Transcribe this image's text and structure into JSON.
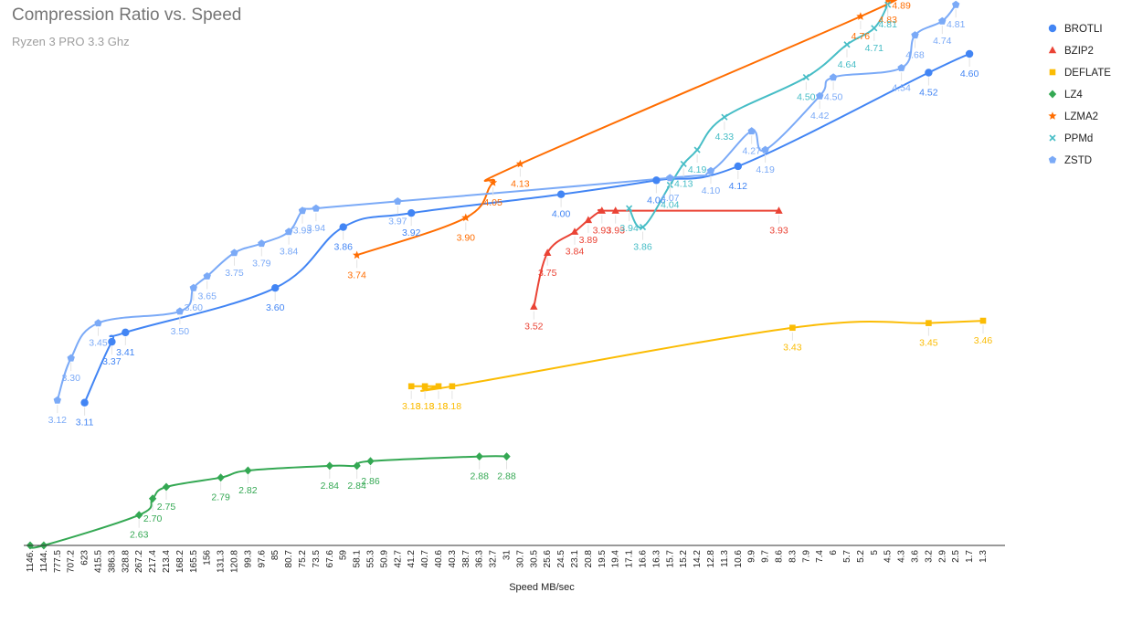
{
  "chart_data": {
    "type": "line",
    "title": "Compression Ratio vs. Speed",
    "subtitle": "Ryzen 3 PRO 3.3 Ghz",
    "xlabel": "Speed MB/sec",
    "ylabel": "",
    "ylim": [
      2.5,
      5.0
    ],
    "x_categories": [
      "1146.",
      "1144.",
      "777.5",
      "707.2",
      "623",
      "415.5",
      "386.3",
      "328.8",
      "267.2",
      "217.4",
      "213.4",
      "168.2",
      "165.5",
      "156",
      "131.3",
      "120.8",
      "99.3",
      "97.6",
      "85",
      "80.7",
      "75.2",
      "73.5",
      "67.6",
      "59",
      "58.1",
      "55.3",
      "50.9",
      "42.7",
      "41.2",
      "40.7",
      "40.6",
      "40.3",
      "38.7",
      "36.3",
      "32.7",
      "31",
      "30.7",
      "30.5",
      "25.6",
      "24.5",
      "23.1",
      "20.8",
      "19.5",
      "19.4",
      "17.1",
      "16.6",
      "16.3",
      "15.7",
      "15.2",
      "14.2",
      "12.8",
      "11.3",
      "10.6",
      "9.9",
      "9.7",
      "8.6",
      "8.3",
      "7.9",
      "7.4",
      "6",
      "5.7",
      "5.2",
      "5",
      "4.5",
      "4.3",
      "3.6",
      "3.2",
      "2.9",
      "2.5",
      "1.7",
      "1.3"
    ],
    "legend_position": "right",
    "gridlines": false,
    "series": [
      {
        "name": "BROTLI",
        "color": "#4285f4",
        "marker": "circle",
        "x": [
          4,
          6,
          7,
          18,
          23,
          28,
          39,
          46,
          52,
          66,
          69
        ],
        "y": [
          3.11,
          3.37,
          3.41,
          3.6,
          3.86,
          3.92,
          4.0,
          4.06,
          4.12,
          4.52,
          4.6
        ],
        "labels": [
          "3.11",
          "3.37",
          "3.41",
          "3.60",
          "3.86",
          "3.92",
          "4.00",
          "4.06",
          "4.12",
          "4.52",
          "4.60"
        ]
      },
      {
        "name": "BZIP2",
        "color": "#ea4335",
        "marker": "triangle",
        "x": [
          37,
          38,
          40,
          41,
          42,
          43,
          55
        ],
        "y": [
          3.52,
          3.75,
          3.84,
          3.89,
          3.93,
          3.93,
          3.93
        ],
        "labels": [
          "3.52",
          "3.75",
          "3.84",
          "3.89",
          "3.93",
          "3.93",
          "3.93"
        ]
      },
      {
        "name": "DEFLATE",
        "color": "#fbbc04",
        "marker": "square",
        "x": [
          28,
          29,
          30,
          31,
          56,
          66,
          70
        ],
        "y": [
          3.18,
          3.18,
          3.18,
          3.18,
          3.43,
          3.45,
          3.46
        ],
        "labels": [
          "3.18",
          "3.18",
          "3.18",
          "3.18",
          "3.43",
          "3.45",
          "3.46"
        ]
      },
      {
        "name": "LZ4",
        "color": "#34a853",
        "marker": "diamond",
        "x": [
          0,
          1,
          8,
          9,
          10,
          14,
          16,
          22,
          24,
          25,
          33,
          35
        ],
        "y": [
          2.5,
          2.5,
          2.63,
          2.7,
          2.75,
          2.79,
          2.82,
          2.84,
          2.84,
          2.86,
          2.88,
          2.88
        ],
        "labels": [
          "",
          "",
          "2.63",
          "2.70",
          "2.75",
          "2.79",
          "2.82",
          "2.84",
          "2.84",
          "2.86",
          "2.88",
          "2.88"
        ]
      },
      {
        "name": "LZMA2",
        "color": "#ff6d01",
        "marker": "star",
        "x": [
          24,
          32,
          34,
          36,
          61,
          63,
          64
        ],
        "y": [
          3.74,
          3.9,
          4.05,
          4.13,
          4.76,
          4.83,
          4.89
        ],
        "labels": [
          "3.74",
          "3.90",
          "4.05",
          "4.13",
          "4.76",
          "4.83",
          "4.89"
        ]
      },
      {
        "name": "PPMd",
        "color": "#46bdc6",
        "marker": "x",
        "x": [
          44,
          45,
          47,
          48,
          49,
          51,
          57,
          60,
          62,
          63
        ],
        "y": [
          3.94,
          3.86,
          4.04,
          4.13,
          4.19,
          4.33,
          4.5,
          4.64,
          4.71,
          4.81
        ],
        "labels": [
          "3.94",
          "3.86",
          "4.04",
          "4.13",
          "4.19",
          "4.33",
          "4.50",
          "4.64",
          "4.71",
          "4.81"
        ]
      },
      {
        "name": "ZSTD",
        "color": "#7baaf7",
        "marker": "pentagon",
        "x": [
          2,
          3,
          5,
          11,
          12,
          13,
          15,
          17,
          19,
          20,
          21,
          27,
          47,
          50,
          53,
          54,
          58,
          59,
          64,
          65,
          67,
          68
        ],
        "y": [
          3.12,
          3.3,
          3.45,
          3.5,
          3.6,
          3.65,
          3.75,
          3.79,
          3.84,
          3.93,
          3.94,
          3.97,
          4.07,
          4.1,
          4.27,
          4.19,
          4.42,
          4.5,
          4.54,
          4.68,
          4.74,
          4.81
        ],
        "labels": [
          "3.12",
          "3.30",
          "3.45",
          "3.50",
          "3.60",
          "3.65",
          "3.75",
          "3.79",
          "3.84",
          "3.93",
          "3.94",
          "3.97",
          "4.07",
          "4.10",
          "4.27",
          "4.19",
          "4.42",
          "4.50",
          "4.54",
          "4.68",
          "4.74",
          "4.81"
        ]
      }
    ]
  }
}
